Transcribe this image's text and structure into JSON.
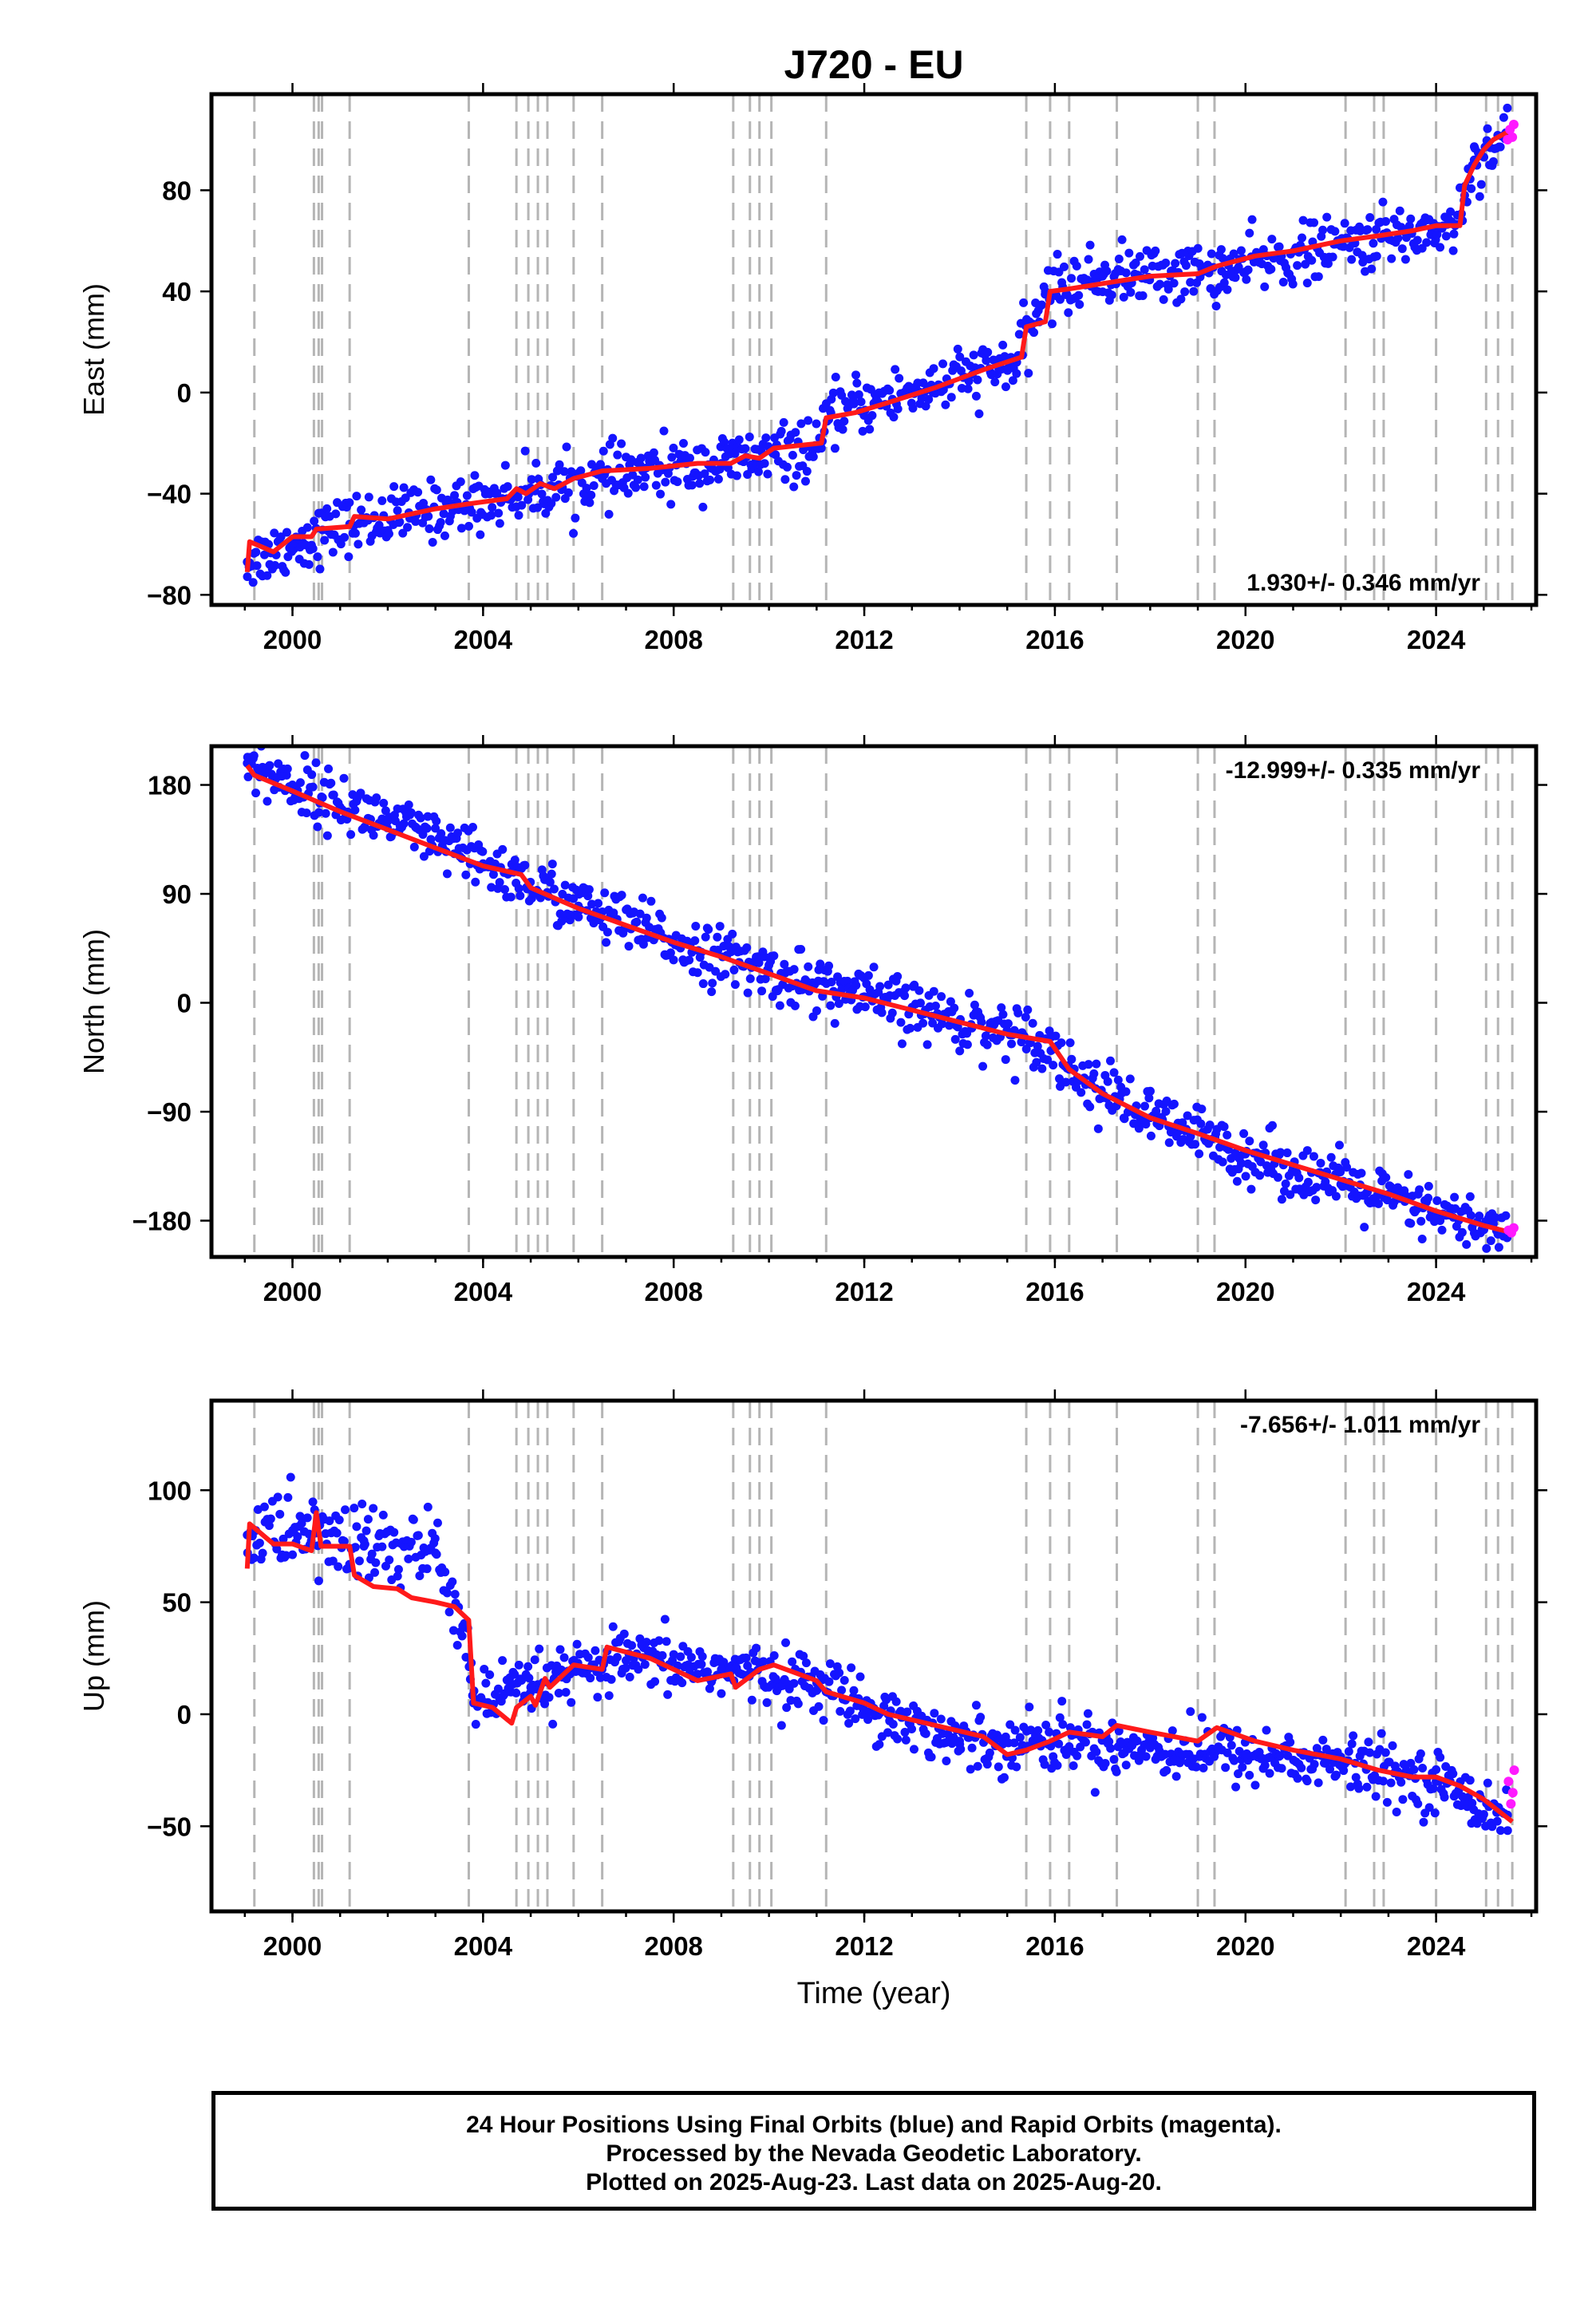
{
  "title": "J720 - EU",
  "chart_data": [
    {
      "type": "scatter",
      "panel": "east",
      "ylabel": "East (mm)",
      "xlabel": "",
      "xlim": [
        1998.3,
        2026.1
      ],
      "ylim": [
        -84,
        118
      ],
      "x_ticks": [
        2000,
        2004,
        2008,
        2012,
        2016,
        2020,
        2024
      ],
      "y_ticks": [
        -80,
        -40,
        0,
        40,
        80
      ],
      "rate_label": "1.930+/- 0.346 mm/yr",
      "rate_position": "bottom-right",
      "series": [
        {
          "name": "Final Orbits",
          "color": "#1414ff",
          "x": [
            1999.05,
            2000.0,
            2001.2,
            2003.5,
            2004.7,
            2006.5,
            2009.0,
            2011.1,
            2011.3,
            2013.0,
            2015.2,
            2015.5,
            2015.8,
            2017.0,
            2019.5,
            2022.0,
            2024.4,
            2024.6,
            2024.8,
            2025.5
          ],
          "y": [
            -67,
            -60,
            -52,
            -45,
            -40,
            -34,
            -28,
            -22,
            -8,
            0,
            12,
            25,
            40,
            46,
            48,
            58,
            66,
            78,
            92,
            102
          ]
        },
        {
          "name": "Rapid Orbits",
          "color": "#ff1aff",
          "x": [
            2025.5,
            2025.55,
            2025.6,
            2025.63
          ],
          "y": [
            100,
            104,
            101,
            106
          ]
        }
      ],
      "fit": {
        "color": "#ff0000",
        "x": [
          1999.05,
          1999.1,
          1999.6,
          2000.0,
          2000.4,
          2000.5,
          2001.2,
          2001.3,
          2002.0,
          2003.0,
          2003.7,
          2004.5,
          2004.7,
          2004.9,
          2005.2,
          2005.5,
          2005.9,
          2006.5,
          2007.5,
          2008.5,
          2009.2,
          2009.5,
          2009.8,
          2010.1,
          2011.1,
          2011.2,
          2011.8,
          2012.5,
          2013.5,
          2014.5,
          2015.3,
          2015.4,
          2015.8,
          2015.9,
          2016.3,
          2017.3,
          2018.0,
          2019.0,
          2019.4,
          2020.2,
          2021.0,
          2022.0,
          2022.8,
          2023.5,
          2024.0,
          2024.5,
          2024.6,
          2024.8,
          2025.0,
          2025.2,
          2025.6
        ],
        "y": [
          -71,
          -59,
          -63,
          -57,
          -57,
          -54,
          -53,
          -49,
          -50,
          -46,
          -44,
          -42,
          -38,
          -40,
          -36,
          -38,
          -34,
          -31,
          -30,
          -28,
          -28,
          -25,
          -26,
          -22,
          -20,
          -10,
          -8,
          -4,
          2,
          9,
          14,
          26,
          28,
          40,
          41,
          44,
          46,
          47,
          50,
          54,
          56,
          60,
          62,
          64,
          66,
          66,
          82,
          90,
          96,
          100,
          104
        ]
      }
    },
    {
      "type": "scatter",
      "panel": "north",
      "ylabel": "North (mm)",
      "xlabel": "",
      "xlim": [
        1998.3,
        2026.1
      ],
      "ylim": [
        -210,
        212
      ],
      "x_ticks": [
        2000,
        2004,
        2008,
        2012,
        2016,
        2020,
        2024
      ],
      "y_ticks": [
        -180,
        -90,
        0,
        90,
        180
      ],
      "rate_label": "-12.999+/- 0.335 mm/yr",
      "rate_position": "top-right",
      "series": [
        {
          "name": "Final Orbits",
          "color": "#1414ff",
          "x": [
            1999.05,
            2000.0,
            2002.0,
            2004.0,
            2006.0,
            2008.0,
            2010.0,
            2012.0,
            2014.0,
            2015.8,
            2016.3,
            2018.0,
            2020.0,
            2022.0,
            2024.0,
            2025.5
          ],
          "y": [
            198,
            180,
            150,
            115,
            80,
            50,
            25,
            5,
            -15,
            -30,
            -55,
            -95,
            -125,
            -150,
            -175,
            -192
          ]
        },
        {
          "name": "Rapid Orbits",
          "color": "#ff1aff",
          "x": [
            2025.52,
            2025.58,
            2025.63
          ],
          "y": [
            -188,
            -190,
            -186
          ]
        }
      ],
      "fit": {
        "color": "#ff0000",
        "x": [
          1999.05,
          1999.2,
          2000.0,
          2001.0,
          2002.0,
          2003.0,
          2004.0,
          2004.8,
          2005.0,
          2006.0,
          2007.0,
          2008.0,
          2009.0,
          2010.0,
          2011.0,
          2012.0,
          2013.0,
          2014.0,
          2015.0,
          2015.9,
          2016.3,
          2017.0,
          2018.0,
          2019.0,
          2020.0,
          2021.0,
          2022.0,
          2023.0,
          2024.0,
          2025.0,
          2025.6
        ],
        "y": [
          196,
          188,
          175,
          158,
          143,
          128,
          113,
          106,
          95,
          78,
          64,
          50,
          38,
          24,
          10,
          4,
          -6,
          -16,
          -26,
          -32,
          -55,
          -75,
          -95,
          -108,
          -122,
          -134,
          -146,
          -158,
          -172,
          -184,
          -190
        ]
      }
    },
    {
      "type": "scatter",
      "panel": "up",
      "ylabel": "Up (mm)",
      "xlabel": "Time (year)",
      "xlim": [
        1998.3,
        2026.1
      ],
      "ylim": [
        -88,
        140
      ],
      "x_ticks": [
        2000,
        2004,
        2008,
        2012,
        2016,
        2020,
        2024
      ],
      "y_ticks": [
        -50,
        0,
        50,
        100
      ],
      "rate_label": "-7.656+/- 1.011 mm/yr",
      "rate_position": "top-right",
      "series": [
        {
          "name": "Final Orbits",
          "color": "#1414ff",
          "x": [
            1999.05,
            2000.0,
            2001.5,
            2003.0,
            2003.6,
            2003.8,
            2005.0,
            2007.0,
            2009.0,
            2011.0,
            2012.5,
            2014.0,
            2016.0,
            2018.0,
            2020.0,
            2022.0,
            2024.0,
            2025.5
          ],
          "y": [
            80,
            82,
            75,
            72,
            40,
            5,
            12,
            24,
            20,
            14,
            0,
            -12,
            -12,
            -15,
            -18,
            -22,
            -30,
            -45
          ]
        },
        {
          "name": "Rapid Orbits",
          "color": "#ff1aff",
          "x": [
            2025.52,
            2025.57,
            2025.61,
            2025.64
          ],
          "y": [
            -30,
            -40,
            -35,
            -25
          ]
        }
      ],
      "fit": {
        "color": "#ff0000",
        "x": [
          1999.05,
          1999.1,
          1999.6,
          2000.0,
          2000.4,
          2000.5,
          2000.6,
          2001.2,
          2001.3,
          2001.7,
          2002.2,
          2002.5,
          2003.0,
          2003.4,
          2003.7,
          2003.8,
          2004.2,
          2004.6,
          2004.7,
          2005.0,
          2005.1,
          2005.3,
          2005.4,
          2005.9,
          2006.5,
          2006.6,
          2007.5,
          2008.0,
          2008.5,
          2009.2,
          2009.3,
          2009.8,
          2010.1,
          2011.0,
          2011.2,
          2012.0,
          2012.5,
          2013.5,
          2014.5,
          2015.0,
          2015.4,
          2015.9,
          2016.3,
          2017.0,
          2017.3,
          2018.0,
          2019.0,
          2019.4,
          2020.2,
          2021.0,
          2022.0,
          2022.8,
          2023.5,
          2024.0,
          2024.5,
          2025.0,
          2025.6
        ],
        "y": [
          65,
          85,
          76,
          76,
          73,
          90,
          75,
          75,
          62,
          57,
          56,
          52,
          50,
          48,
          42,
          5,
          3,
          -4,
          3,
          8,
          4,
          16,
          12,
          22,
          20,
          30,
          25,
          20,
          15,
          18,
          12,
          20,
          22,
          15,
          10,
          5,
          0,
          -5,
          -10,
          -18,
          -16,
          -12,
          -8,
          -10,
          -5,
          -8,
          -12,
          -6,
          -12,
          -16,
          -20,
          -25,
          -28,
          -28,
          -32,
          -38,
          -48
        ]
      }
    }
  ],
  "event_lines_years": [
    1999.2,
    2000.45,
    2000.55,
    2000.62,
    2001.2,
    2003.7,
    2004.7,
    2004.95,
    2005.15,
    2005.35,
    2005.9,
    2006.5,
    2009.25,
    2009.6,
    2009.8,
    2010.05,
    2011.2,
    2015.4,
    2015.9,
    2016.3,
    2017.3,
    2019.0,
    2019.35,
    2022.1,
    2022.7,
    2022.9,
    2024.0,
    2025.05,
    2025.3,
    2025.6
  ],
  "footer": {
    "line1": "24 Hour Positions Using Final Orbits (blue) and Rapid Orbits (magenta).",
    "line2": "Processed by the Nevada Geodetic Laboratory.",
    "line3": "Plotted on 2025-Aug-23. Last data on 2025-Aug-20."
  }
}
